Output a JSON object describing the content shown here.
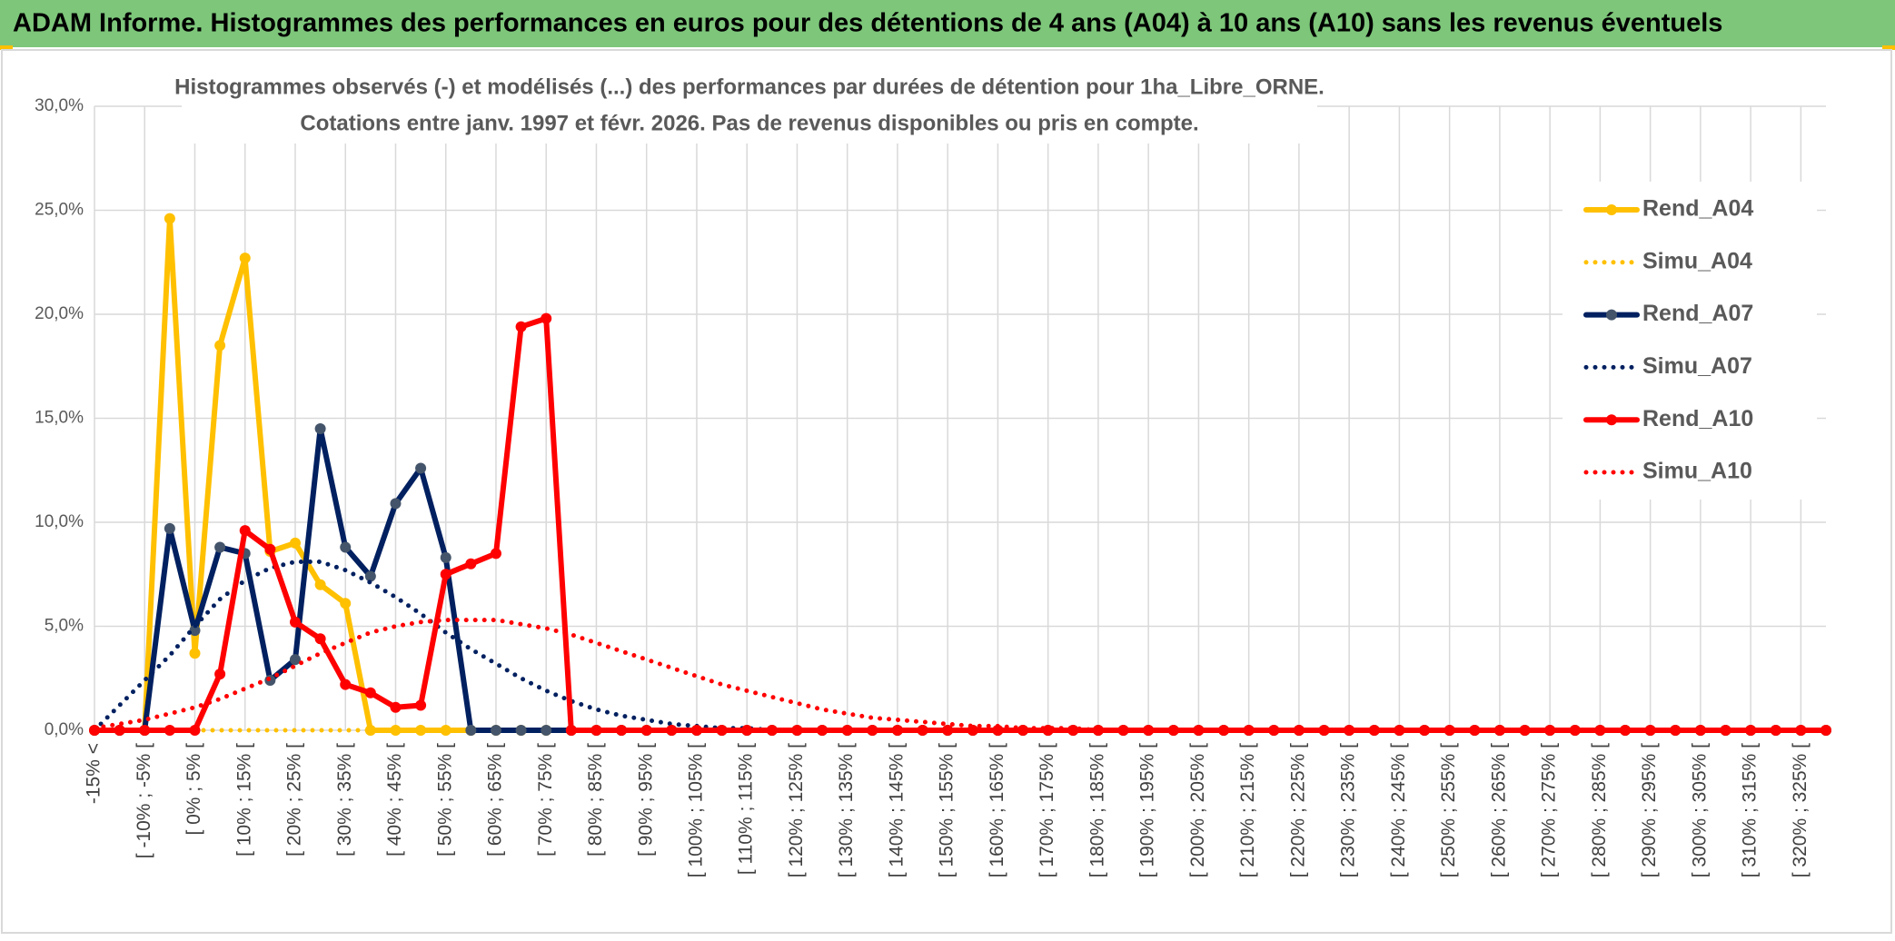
{
  "header": {
    "title": "ADAM Informe. Histogrammes des performances en euros pour des détentions de 4 ans (A04) à 10 ans (A10) sans les revenus éventuels"
  },
  "chart_data": {
    "type": "line",
    "title": "Histogrammes observés (-) et modélisés (...) des performances par durées de détention pour 1ha_Libre_ORNE.",
    "subtitle": "Cotations entre janv. 1997 et févr. 2026. Pas de revenus disponibles ou pris en compte.",
    "categories": [
      "-15% <",
      null,
      "[ -10% ; -5% [",
      null,
      "[ 0% ; 5% [",
      null,
      "[ 10% ; 15% [",
      null,
      "[ 20% ; 25% [",
      null,
      "[ 30% ; 35% [",
      null,
      "[ 40% ; 45% [",
      null,
      "[ 50% ; 55% [",
      null,
      "[ 60% ; 65% [",
      null,
      "[ 70% ; 75% [",
      null,
      "[ 80% ; 85% [",
      null,
      "[ 90% ; 95% [",
      null,
      "[ 100% ; 105% [",
      null,
      "[ 110% ; 115% [",
      null,
      "[ 120% ; 125% [",
      null,
      "[ 130% ; 135% [",
      null,
      "[ 140% ; 145% [",
      null,
      "[ 150% ; 155% [",
      null,
      "[ 160% ; 165% [",
      null,
      "[ 170% ; 175% [",
      null,
      "[ 180% ; 185% [",
      null,
      "[ 190% ; 195% [",
      null,
      "[ 200% ; 205% [",
      null,
      "[ 210% ; 215% [",
      null,
      "[ 220% ; 225% [",
      null,
      "[ 230% ; 235% [",
      null,
      "[ 240% ; 245% [",
      null,
      "[ 250% ; 255% [",
      null,
      "[ 260% ; 265% [",
      null,
      "[ 270% ; 275% [",
      null,
      "[ 280% ; 285% [",
      null,
      "[ 290% ; 295% [",
      null,
      "[ 300% ; 305% [",
      null,
      "[ 310% ; 315% [",
      null,
      "[ 320% ; 325% [",
      null
    ],
    "series": [
      {
        "name": "Rend_A04",
        "color": "#ffc000",
        "line_style": "solid",
        "marker_color": "#ffc000",
        "values": [
          0,
          0,
          0,
          24.6,
          3.7,
          18.5,
          22.7,
          8.6,
          9.0,
          7.0,
          6.1,
          0,
          0,
          0,
          0,
          0,
          0,
          0,
          0,
          0,
          0,
          0,
          0,
          0,
          0,
          0,
          0,
          0,
          0,
          0,
          0,
          0,
          0,
          0,
          0,
          0,
          0,
          0,
          0,
          0,
          0,
          0,
          0,
          0,
          0,
          0,
          0,
          0,
          0,
          0,
          0,
          0,
          0,
          0,
          0,
          0,
          0,
          0,
          0,
          0,
          0,
          0,
          0,
          0,
          0,
          0,
          0,
          0,
          0,
          0
        ]
      },
      {
        "name": "Simu_A04",
        "color": "#ffc000",
        "line_style": "dotted",
        "values": [
          0,
          0,
          0,
          0,
          0,
          0,
          0,
          0,
          0,
          0,
          0,
          0,
          0,
          0,
          0,
          0,
          0,
          0,
          0,
          0,
          0,
          0,
          0,
          0,
          0,
          0,
          0,
          0,
          0,
          0,
          0,
          0,
          0,
          0,
          0,
          0,
          0,
          0,
          0,
          0,
          0,
          0,
          0,
          0,
          0,
          0,
          0,
          0,
          0,
          0,
          0,
          0,
          0,
          0,
          0,
          0,
          0,
          0,
          0,
          0,
          0,
          0,
          0,
          0,
          0,
          0,
          0,
          0,
          0,
          0
        ]
      },
      {
        "name": "Rend_A07",
        "color": "#002060",
        "line_style": "solid",
        "marker_color": "#44546a",
        "values": [
          0,
          0,
          0,
          9.7,
          4.8,
          8.8,
          8.5,
          2.4,
          3.4,
          14.5,
          8.8,
          7.4,
          10.9,
          12.6,
          8.3,
          0,
          0,
          0,
          0,
          0,
          0,
          0,
          0,
          0,
          0,
          0,
          0,
          0,
          0,
          0,
          0,
          0,
          0,
          0,
          0,
          0,
          0,
          0,
          0,
          0,
          0,
          0,
          0,
          0,
          0,
          0,
          0,
          0,
          0,
          0,
          0,
          0,
          0,
          0,
          0,
          0,
          0,
          0,
          0,
          0,
          0,
          0,
          0,
          0,
          0,
          0,
          0,
          0,
          0,
          0
        ]
      },
      {
        "name": "Simu_A07",
        "color": "#002060",
        "line_style": "dotted",
        "values": [
          0,
          1.2,
          2.4,
          3.6,
          5.0,
          6.3,
          7.2,
          7.8,
          8.1,
          8.1,
          7.7,
          7.1,
          6.4,
          5.6,
          4.7,
          3.9,
          3.2,
          2.5,
          1.9,
          1.4,
          1.0,
          0.7,
          0.5,
          0.3,
          0.2,
          0.1,
          0.1,
          0,
          0,
          0,
          0,
          0,
          0,
          0,
          0,
          0,
          0,
          0,
          0,
          0,
          0,
          0,
          0,
          0,
          0,
          0,
          0,
          0,
          0,
          0,
          0,
          0,
          0,
          0,
          0,
          0,
          0,
          0,
          0,
          0,
          0,
          0,
          0,
          0,
          0,
          0,
          0,
          0,
          0,
          0
        ]
      },
      {
        "name": "Rend_A10",
        "color": "#ff0000",
        "line_style": "solid",
        "marker_color": "#ff0000",
        "values": [
          0,
          0,
          0,
          0,
          0,
          2.7,
          9.6,
          8.7,
          5.2,
          4.4,
          2.2,
          1.8,
          1.1,
          1.2,
          7.5,
          8.0,
          8.5,
          19.4,
          19.8,
          0,
          0,
          0,
          0,
          0,
          0,
          0,
          0,
          0,
          0,
          0,
          0,
          0,
          0,
          0,
          0,
          0,
          0,
          0,
          0,
          0,
          0,
          0,
          0,
          0,
          0,
          0,
          0,
          0,
          0,
          0,
          0,
          0,
          0,
          0,
          0,
          0,
          0,
          0,
          0,
          0,
          0,
          0,
          0,
          0,
          0,
          0,
          0,
          0,
          0,
          0
        ]
      },
      {
        "name": "Simu_A10",
        "color": "#ff0000",
        "line_style": "dotted",
        "values": [
          0.1,
          0.3,
          0.5,
          0.8,
          1.1,
          1.5,
          2.0,
          2.5,
          3.1,
          3.7,
          4.2,
          4.7,
          5.0,
          5.2,
          5.3,
          5.3,
          5.3,
          5.1,
          4.9,
          4.6,
          4.2,
          3.8,
          3.4,
          3.0,
          2.6,
          2.2,
          1.9,
          1.6,
          1.3,
          1.0,
          0.8,
          0.6,
          0.5,
          0.4,
          0.3,
          0.2,
          0.2,
          0.1,
          0.1,
          0.1,
          0,
          0,
          0,
          0,
          0,
          0,
          0,
          0,
          0,
          0,
          0,
          0,
          0,
          0,
          0,
          0,
          0,
          0,
          0,
          0,
          0,
          0,
          0,
          0,
          0,
          0,
          0,
          0,
          0,
          0
        ]
      }
    ],
    "ylim": [
      0,
      30
    ],
    "yticks": [
      {
        "value": 0,
        "label": "0,0%"
      },
      {
        "value": 5,
        "label": "5,0%"
      },
      {
        "value": 10,
        "label": "10,0%"
      },
      {
        "value": 15,
        "label": "15,0%"
      },
      {
        "value": 20,
        "label": "20,0%"
      },
      {
        "value": 25,
        "label": "25,0%"
      },
      {
        "value": 30,
        "label": "30,0%"
      }
    ],
    "grid": true,
    "legend": "right"
  }
}
